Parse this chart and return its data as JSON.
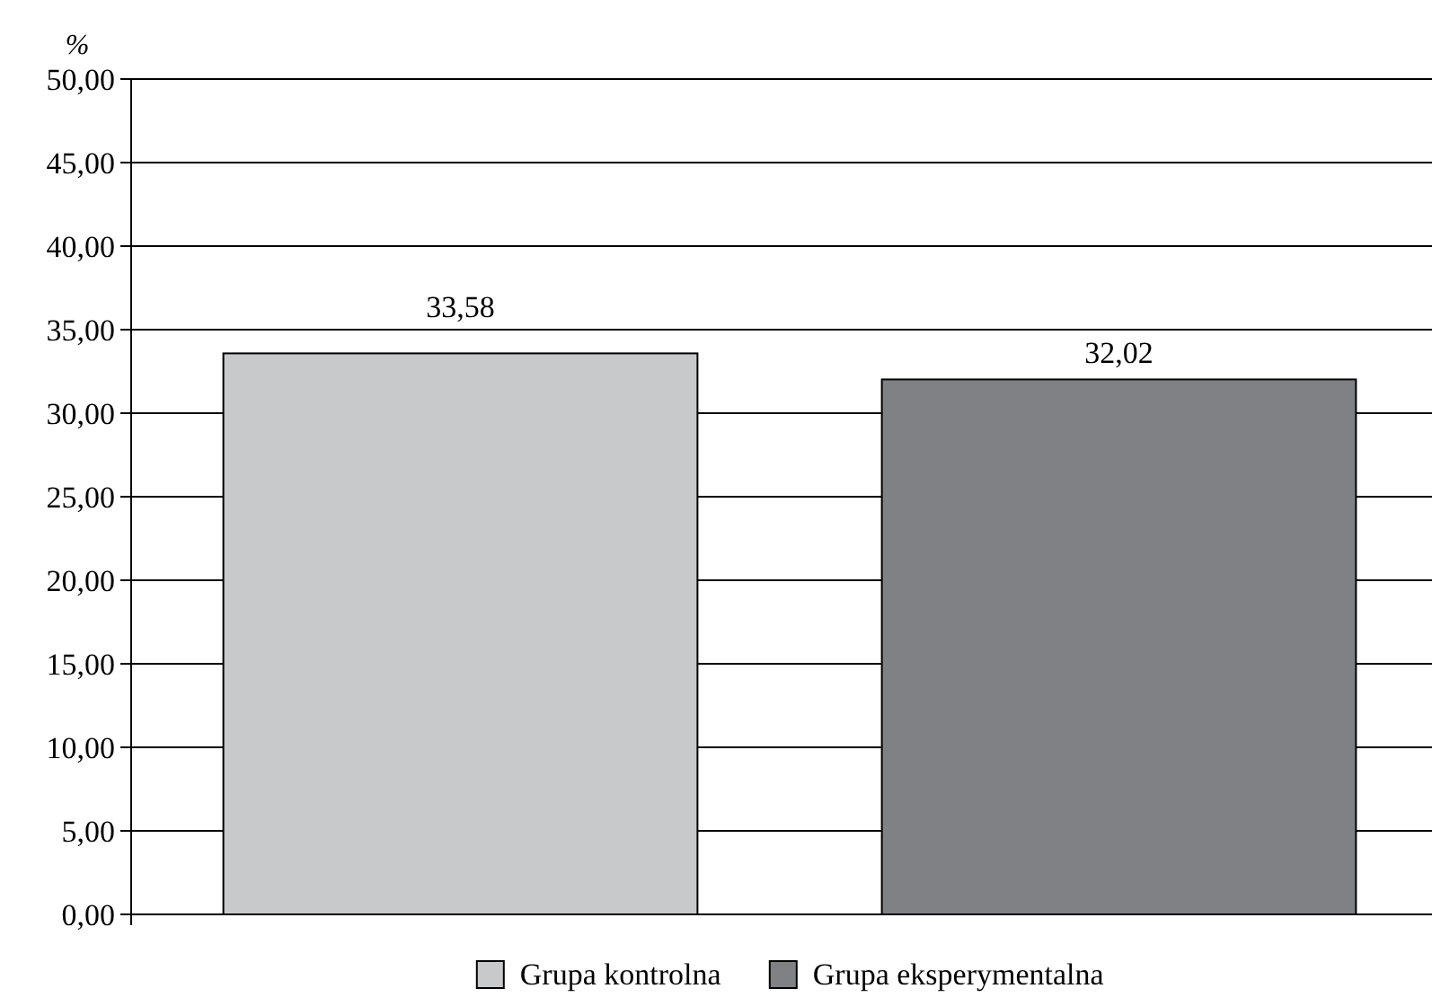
{
  "chart_data": {
    "type": "bar",
    "ylabel": "%",
    "categories": [
      null
    ],
    "series": [
      {
        "name": "Grupa kontrolna",
        "color": "#c8c9cb",
        "values": [
          33.58
        ],
        "value_labels": [
          "33,58"
        ]
      },
      {
        "name": "Grupa eksperymentalna",
        "color": "#808184",
        "values": [
          32.02
        ],
        "value_labels": [
          "32,02"
        ]
      }
    ],
    "ylim": [
      0,
      50
    ],
    "yticks": [
      {
        "value": 0,
        "label": "0,00"
      },
      {
        "value": 5,
        "label": "5,00"
      },
      {
        "value": 10,
        "label": "10,00"
      },
      {
        "value": 15,
        "label": "15,00"
      },
      {
        "value": 20,
        "label": "20,00"
      },
      {
        "value": 25,
        "label": "25,00"
      },
      {
        "value": 30,
        "label": "30,00"
      },
      {
        "value": 35,
        "label": "35,00"
      },
      {
        "value": 40,
        "label": "40,00"
      },
      {
        "value": 45,
        "label": "45,00"
      },
      {
        "value": 50,
        "label": "50,00"
      }
    ],
    "grid": "y",
    "legend": "bottom"
  }
}
